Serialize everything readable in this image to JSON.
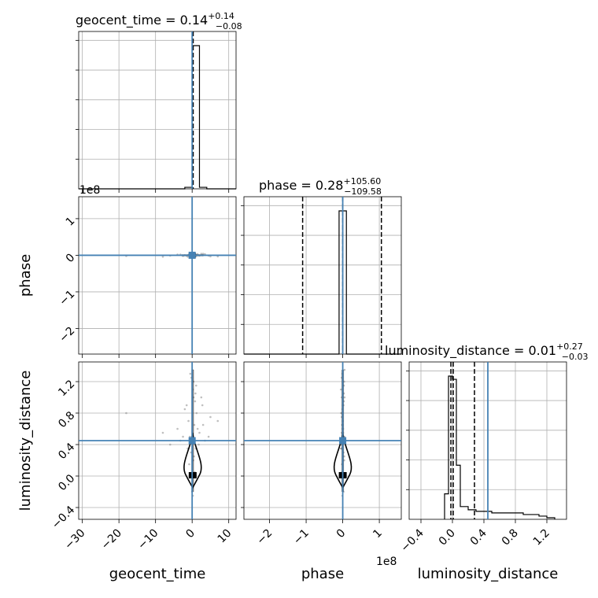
{
  "chart_data": {
    "type": "scatter",
    "subtype": "corner-plot",
    "parameters": [
      "geocent_time",
      "phase",
      "luminosity_distance"
    ],
    "axis_labels": {
      "x": [
        "geocent_time",
        "phase",
        "luminosity_distance"
      ],
      "y": [
        "phase",
        "luminosity_distance"
      ]
    },
    "offset_label": "1e8",
    "truth_color": "#4682b4",
    "titles": [
      {
        "param": "geocent_time",
        "text": "geocent_time = 0.14",
        "plus": "+0.14",
        "minus": "−0.08"
      },
      {
        "param": "phase",
        "text": "phase = 0.28",
        "plus": "+105.60",
        "minus": "−109.58"
      },
      {
        "param": "luminosity_distance",
        "text": "luminosity_distance = 0.01",
        "plus": "+0.27",
        "minus": "−0.03"
      }
    ],
    "ranges": {
      "geocent_time": [
        -31,
        12
      ],
      "phase": [
        -270000000.0,
        160000000.0
      ],
      "luminosity_distance": [
        -0.55,
        1.45
      ]
    },
    "ticks": {
      "geocent_time": {
        "values": [
          -30,
          -20,
          -10,
          0,
          10
        ],
        "labels": [
          "−30",
          "−20",
          "−10",
          "0",
          "10"
        ]
      },
      "phase_x": {
        "values": [
          -200000000.0,
          -100000000.0,
          0,
          100000000.0
        ],
        "labels": [
          "−2",
          "−1",
          "0",
          "1"
        ]
      },
      "phase_y": {
        "values": [
          -200000000.0,
          -100000000.0,
          0,
          100000000.0
        ],
        "labels": [
          "−2",
          "−1",
          "0",
          "1"
        ]
      },
      "luminosity_distance": {
        "values": [
          -0.4,
          0.0,
          0.4,
          0.8,
          1.2
        ],
        "labels": [
          "−0.4",
          "0.0",
          "0.4",
          "0.8",
          "1.2"
        ]
      }
    },
    "truths": {
      "geocent_time": 0.0,
      "phase": 0.0,
      "luminosity_distance": 0.45
    },
    "quantiles": {
      "geocent_time": [
        0.06,
        0.14,
        0.28
      ],
      "phase": [
        -109580000.0,
        0.28,
        105600000.0
      ],
      "luminosity_distance": [
        -0.02,
        0.01,
        0.28
      ]
    },
    "histograms": {
      "geocent_time": {
        "edges": [
          -31,
          -30,
          -28,
          -26,
          -24,
          -22,
          -20,
          -18,
          -16,
          -14,
          -12,
          -10,
          -8,
          -6,
          -4,
          -2,
          0,
          2,
          4,
          6,
          8,
          10,
          12
        ],
        "counts": [
          0,
          0,
          0,
          0,
          0,
          0,
          0,
          0,
          0,
          0,
          0,
          0,
          0,
          0,
          0,
          1,
          95,
          1,
          0,
          0,
          0,
          0
        ]
      },
      "phase": {
        "edges": [
          -270000000.0,
          -250000000.0,
          -230000000.0,
          -210000000.0,
          -190000000.0,
          -170000000.0,
          -150000000.0,
          -130000000.0,
          -110000000.0,
          -90000000.0,
          -70000000.0,
          -50000000.0,
          -30000000.0,
          -10000000.0,
          10000000.0,
          30000000.0,
          50000000.0,
          70000000.0,
          90000000.0,
          110000000.0,
          130000000.0,
          160000000.0
        ],
        "counts": [
          0,
          0,
          0,
          0,
          0,
          0,
          0,
          0,
          0,
          0,
          0,
          0,
          0,
          95,
          0,
          0,
          0,
          0,
          0,
          0,
          0
        ]
      },
      "luminosity_distance": {
        "edges": [
          -0.1,
          -0.05,
          0.0,
          0.05,
          0.1,
          0.2,
          0.3,
          0.4,
          0.5,
          0.6,
          0.7,
          0.8,
          0.9,
          1.0,
          1.1,
          1.2,
          1.3
        ],
        "counts": [
          16,
          90,
          88,
          34,
          8,
          6,
          5,
          5,
          4,
          4,
          4,
          4,
          3,
          3,
          2,
          1
        ]
      }
    },
    "scatter_samples": {
      "note_free": true,
      "geocent_time": [
        0.2,
        -0.5,
        0.8,
        1.2,
        -1.0,
        0.4,
        2.0,
        -2.5,
        0.1,
        0.6,
        -0.3,
        3.5,
        -4.0,
        0.9,
        1.8,
        -1.5,
        0.3,
        5.0,
        -8.0,
        2.5,
        -0.8,
        0.0,
        1.0,
        -2.0,
        4.5,
        -18.0,
        7.0,
        0.5,
        -0.2,
        1.5,
        -3.2,
        0.7,
        2.8,
        -6.0,
        0.2,
        1.1,
        -1.2,
        3.0,
        -0.6,
        0.4
      ],
      "luminosity_distance": [
        1.1,
        1.3,
        0.95,
        0.8,
        0.7,
        1.2,
        0.55,
        0.5,
        1.35,
        0.65,
        0.3,
        0.45,
        0.6,
        1.05,
        0.4,
        0.9,
        0.2,
        0.75,
        0.55,
        1.0,
        0.15,
        -0.2,
        0.35,
        0.85,
        0.5,
        0.8,
        0.7,
        0.25,
        1.25,
        0.6,
        0.45,
        0.05,
        0.9,
        0.4,
        -0.25,
        1.15,
        0.35,
        0.65,
        0.5,
        1.0
      ]
    }
  }
}
